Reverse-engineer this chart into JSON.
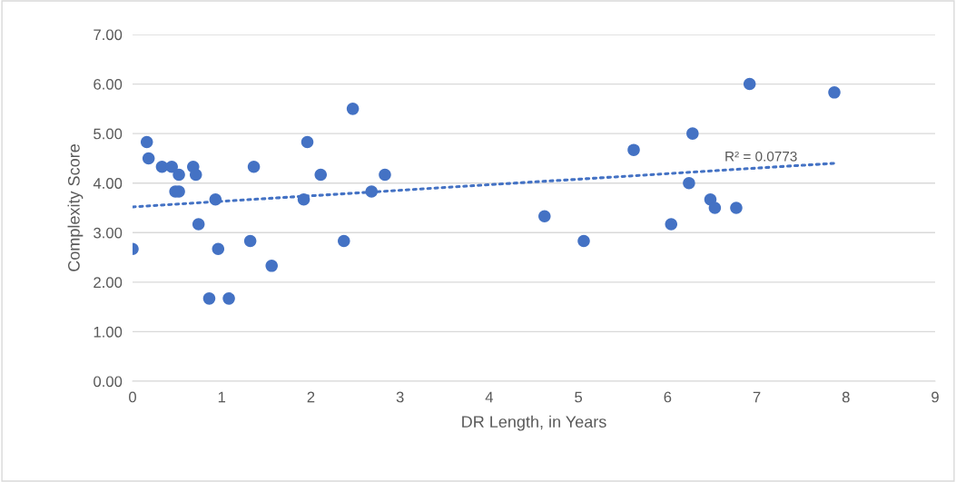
{
  "chart_data": {
    "type": "scatter",
    "xlabel": "DR Length, in Years",
    "ylabel": "Complexity Score",
    "xlim": [
      0,
      9
    ],
    "xticks": [
      0,
      1,
      2,
      3,
      4,
      5,
      6,
      7,
      8,
      9
    ],
    "ylim": [
      0,
      7
    ],
    "yticks": [
      {
        "value": 0,
        "label": "0.00"
      },
      {
        "value": 1,
        "label": "1.00"
      },
      {
        "value": 2,
        "label": "2.00"
      },
      {
        "value": 3,
        "label": "3.00"
      },
      {
        "value": 4,
        "label": "4.00"
      },
      {
        "value": 5,
        "label": "5.00"
      },
      {
        "value": 6,
        "label": "6.00"
      },
      {
        "value": 7,
        "label": "7.00"
      }
    ],
    "grid": "y",
    "series": [
      {
        "marker": "circle",
        "color": "#4472c4",
        "x": [
          0,
          0.16,
          0.18,
          0.33,
          0.44,
          0.48,
          0.52,
          0.52,
          0.68,
          0.71,
          0.74,
          0.86,
          0.93,
          0.96,
          1.08,
          1.32,
          1.36,
          1.56,
          1.92,
          1.96,
          2.11,
          2.37,
          2.47,
          2.68,
          2.83,
          4.62,
          5.06,
          5.62,
          6.04,
          6.24,
          6.28,
          6.48,
          6.53,
          6.77,
          6.92,
          7.87
        ],
        "values": [
          2.67,
          4.83,
          4.5,
          4.33,
          4.33,
          3.83,
          3.83,
          4.17,
          4.33,
          4.17,
          3.17,
          1.67,
          3.67,
          2.67,
          1.67,
          2.83,
          4.33,
          2.33,
          3.67,
          4.83,
          4.17,
          2.83,
          5.5,
          3.83,
          4.17,
          3.33,
          2.83,
          4.67,
          3.17,
          4.0,
          5.0,
          3.67,
          3.5,
          3.5,
          6.0,
          5.83
        ]
      },
      {
        "type": "line",
        "marker": "none",
        "color": "#4472c4",
        "line_style": "dotted",
        "x": [
          0,
          7.87
        ],
        "values": [
          3.52,
          4.4
        ]
      }
    ],
    "annotations": [
      "R² = 0.0773"
    ]
  }
}
